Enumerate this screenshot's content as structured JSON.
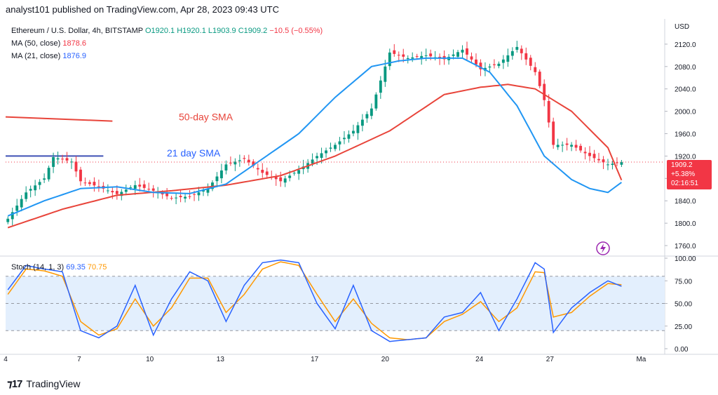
{
  "header": {
    "text": "analyst101 published on TradingView.com, Apr 28, 2023 09:43 UTC"
  },
  "legend": {
    "symbol": "Ethereum / U.S. Dollar, 4h, BITSTAMP",
    "open": "O1920.1",
    "high": "H1920.1",
    "low": "L1903.9",
    "close": "C1909.2",
    "change": "−10.5 (−0.55%)",
    "ma50_label": "MA (50, close)",
    "ma50_value": "1878.6",
    "ma21_label": "MA (21, close)",
    "ma21_value": "1876.9"
  },
  "currency": "USD",
  "price_tag": {
    "price": "1909.2",
    "pct": "+5.38%",
    "countdown": "02:16:51"
  },
  "annotations": {
    "sma50": "50-day SMA",
    "sma21": "21 day SMA"
  },
  "stoch_legend": {
    "label": "Stoch (14, 1, 3)",
    "k": "69.35",
    "d": "70.75"
  },
  "footer": {
    "brand": "TradingView"
  },
  "colors": {
    "up": "#089981",
    "down": "#f23645",
    "ma50": "#e8443a",
    "ma21": "#2196f3",
    "stoch_k": "#2962ff",
    "stoch_d": "#ff9800",
    "band": "#e3effd"
  },
  "chart_data": [
    {
      "type": "candlestick",
      "title": "Ethereum / U.S. Dollar, 4h, BITSTAMP",
      "ylim": [
        1745,
        2155
      ],
      "y_ticks": [
        "2120.0",
        "2080.0",
        "2040.0",
        "2000.0",
        "1960.0",
        "1920.0",
        "1880.0",
        "1840.0",
        "1800.0",
        "1760.0"
      ],
      "x_ticks": [
        "4",
        "7",
        "10",
        "13",
        "17",
        "20",
        "24",
        "27",
        "Ma"
      ],
      "candle_count": 136,
      "close_anchors": [
        [
          0,
          1808
        ],
        [
          4,
          1855
        ],
        [
          8,
          1880
        ],
        [
          10,
          1918
        ],
        [
          14,
          1910
        ],
        [
          16,
          1875
        ],
        [
          20,
          1865
        ],
        [
          24,
          1852
        ],
        [
          28,
          1868
        ],
        [
          32,
          1858
        ],
        [
          36,
          1845
        ],
        [
          40,
          1848
        ],
        [
          44,
          1862
        ],
        [
          48,
          1905
        ],
        [
          52,
          1915
        ],
        [
          56,
          1890
        ],
        [
          60,
          1875
        ],
        [
          64,
          1895
        ],
        [
          68,
          1920
        ],
        [
          72,
          1940
        ],
        [
          76,
          1965
        ],
        [
          80,
          2005
        ],
        [
          84,
          2105
        ],
        [
          88,
          2095
        ],
        [
          92,
          2100
        ],
        [
          96,
          2093
        ],
        [
          100,
          2110
        ],
        [
          104,
          2075
        ],
        [
          108,
          2085
        ],
        [
          112,
          2115
        ],
        [
          116,
          2070
        ],
        [
          118,
          2020
        ],
        [
          120,
          1940
        ],
        [
          124,
          1940
        ],
        [
          128,
          1920
        ],
        [
          132,
          1905
        ],
        [
          135,
          1909
        ]
      ],
      "series": [
        {
          "name": "MA (50, close)",
          "values_last": 1878.6
        },
        {
          "name": "MA (21, close)",
          "values_last": 1876.9
        }
      ],
      "ma50_anchors": [
        [
          0,
          1792
        ],
        [
          12,
          1825
        ],
        [
          24,
          1850
        ],
        [
          36,
          1858
        ],
        [
          48,
          1868
        ],
        [
          60,
          1885
        ],
        [
          72,
          1920
        ],
        [
          84,
          1965
        ],
        [
          96,
          2030
        ],
        [
          104,
          2043
        ],
        [
          110,
          2048
        ],
        [
          116,
          2040
        ],
        [
          124,
          2000
        ],
        [
          132,
          1935
        ],
        [
          135,
          1877
        ]
      ],
      "ma21_anchors": [
        [
          0,
          1813
        ],
        [
          8,
          1840
        ],
        [
          16,
          1862
        ],
        [
          24,
          1865
        ],
        [
          32,
          1855
        ],
        [
          40,
          1853
        ],
        [
          48,
          1870
        ],
        [
          56,
          1915
        ],
        [
          64,
          1960
        ],
        [
          72,
          2025
        ],
        [
          80,
          2080
        ],
        [
          86,
          2090
        ],
        [
          92,
          2095
        ],
        [
          100,
          2095
        ],
        [
          106,
          2070
        ],
        [
          112,
          2010
        ],
        [
          118,
          1920
        ],
        [
          124,
          1878
        ],
        [
          128,
          1862
        ],
        [
          132,
          1855
        ],
        [
          135,
          1873
        ]
      ],
      "horizontal_lines": [
        {
          "name": "resistance-red",
          "value": 1990,
          "x_from": 0,
          "x_to": 23
        },
        {
          "name": "support-blue",
          "value": 1920,
          "x_from": 0,
          "x_to": 21
        }
      ]
    },
    {
      "type": "line",
      "title": "Stoch (14, 1, 3)",
      "ylim": [
        0,
        100
      ],
      "y_ticks": [
        "100.00",
        "75.00",
        "50.00",
        "25.00",
        "0.00"
      ],
      "bands": [
        20,
        50,
        80
      ],
      "series": [
        {
          "name": "%K",
          "last": 69.35,
          "anchors": [
            [
              0,
              65
            ],
            [
              4,
              92
            ],
            [
              8,
              88
            ],
            [
              12,
              85
            ],
            [
              16,
              20
            ],
            [
              20,
              12
            ],
            [
              24,
              25
            ],
            [
              28,
              70
            ],
            [
              32,
              15
            ],
            [
              36,
              55
            ],
            [
              40,
              85
            ],
            [
              44,
              75
            ],
            [
              48,
              30
            ],
            [
              52,
              70
            ],
            [
              56,
              95
            ],
            [
              60,
              98
            ],
            [
              64,
              95
            ],
            [
              68,
              50
            ],
            [
              72,
              22
            ],
            [
              76,
              70
            ],
            [
              80,
              20
            ],
            [
              84,
              8
            ],
            [
              88,
              10
            ],
            [
              92,
              12
            ],
            [
              96,
              35
            ],
            [
              100,
              40
            ],
            [
              104,
              62
            ],
            [
              108,
              20
            ],
            [
              112,
              55
            ],
            [
              116,
              95
            ],
            [
              118,
              88
            ],
            [
              120,
              18
            ],
            [
              124,
              45
            ],
            [
              128,
              62
            ],
            [
              132,
              75
            ],
            [
              135,
              69
            ]
          ]
        },
        {
          "name": "%D",
          "last": 70.75,
          "anchors": [
            [
              0,
              60
            ],
            [
              4,
              88
            ],
            [
              8,
              86
            ],
            [
              12,
              80
            ],
            [
              16,
              30
            ],
            [
              20,
              15
            ],
            [
              24,
              22
            ],
            [
              28,
              55
            ],
            [
              32,
              25
            ],
            [
              36,
              45
            ],
            [
              40,
              78
            ],
            [
              44,
              78
            ],
            [
              48,
              40
            ],
            [
              52,
              60
            ],
            [
              56,
              88
            ],
            [
              60,
              96
            ],
            [
              64,
              92
            ],
            [
              68,
              60
            ],
            [
              72,
              30
            ],
            [
              76,
              55
            ],
            [
              80,
              28
            ],
            [
              84,
              12
            ],
            [
              88,
              10
            ],
            [
              92,
              12
            ],
            [
              96,
              30
            ],
            [
              100,
              38
            ],
            [
              104,
              52
            ],
            [
              108,
              30
            ],
            [
              112,
              45
            ],
            [
              116,
              85
            ],
            [
              118,
              84
            ],
            [
              120,
              35
            ],
            [
              124,
              40
            ],
            [
              128,
              58
            ],
            [
              132,
              72
            ],
            [
              135,
              70.75
            ]
          ]
        }
      ]
    }
  ]
}
